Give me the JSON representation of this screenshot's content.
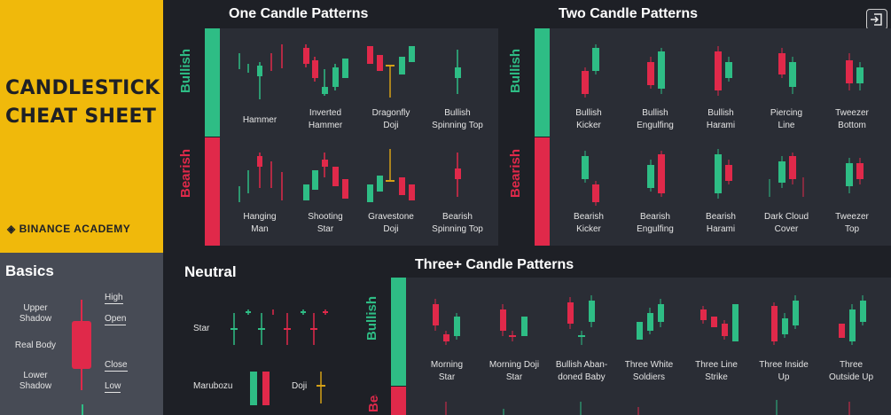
{
  "header": {
    "title_line1": "CANDLESTICK",
    "title_line2": "CHEAT SHEET",
    "brand": "◈ BINANCE ACADEMY"
  },
  "basics": {
    "title": "Basics",
    "upper_shadow": [
      "Upper",
      "Shadow"
    ],
    "real_body": "Real Body",
    "lower_shadow": [
      "Lower",
      "Shadow"
    ],
    "high": "High",
    "open": "Open",
    "close": "Close",
    "low": "Low"
  },
  "one_candle": {
    "title": "One Candle Patterns",
    "bullish_label": "Bullish",
    "bearish_label": "Bearish",
    "bullish": [
      [
        "Hammer",
        ""
      ],
      [
        "Inverted",
        "Hammer"
      ],
      [
        "Dragonfly",
        "Doji"
      ],
      [
        "Bullish",
        "Spinning Top"
      ]
    ],
    "bearish": [
      [
        "Hanging",
        "Man"
      ],
      [
        "Shooting",
        "Star"
      ],
      [
        "Gravestone",
        "Doji"
      ],
      [
        "Bearish",
        "Spinning Top"
      ]
    ]
  },
  "two_candle": {
    "title": "Two Candle Patterns",
    "bullish_label": "Bullish",
    "bearish_label": "Bearish",
    "bullish": [
      [
        "Bullish",
        "Kicker"
      ],
      [
        "Bullish",
        "Engulfing"
      ],
      [
        "Bullish",
        "Harami"
      ],
      [
        "Piercing",
        "Line"
      ],
      [
        "Tweezer",
        "Bottom"
      ]
    ],
    "bearish": [
      [
        "Bearish",
        "Kicker"
      ],
      [
        "Bearish",
        "Engulfing"
      ],
      [
        "Bearish",
        "Harami"
      ],
      [
        "Dark Cloud",
        "Cover"
      ],
      [
        "Tweezer",
        "Top"
      ]
    ]
  },
  "neutral": {
    "title": "Neutral",
    "star": "Star",
    "marubozu": "Marubozu",
    "doji": "Doji"
  },
  "three_candle": {
    "title": "Three+ Candle Patterns",
    "bullish_label": "Bullish",
    "bearish_label": "Bearish",
    "bullish": [
      [
        "Morning",
        "Star"
      ],
      [
        "Morning Doji",
        "Star"
      ],
      [
        "Bullish Aban-",
        "doned Baby"
      ],
      [
        "Three White",
        "Soldiers"
      ],
      [
        "Three Line",
        "Strike"
      ],
      [
        "Three Inside",
        "Up"
      ],
      [
        "Three",
        "Outside Up"
      ]
    ]
  },
  "colors": {
    "bull": "#2ebd85",
    "bear": "#e0294a",
    "brand": "#f0b90b"
  }
}
